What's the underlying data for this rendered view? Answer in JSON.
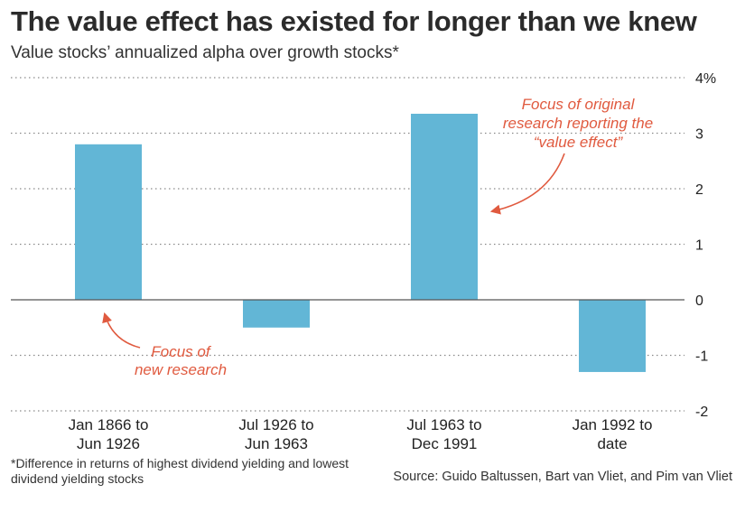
{
  "header": {
    "title": "The value effect has existed for longer than we knew",
    "subtitle": "Value stocks’ annualized alpha over growth stocks*"
  },
  "chart_data": {
    "type": "bar",
    "categories": [
      [
        "Jan 1866 to",
        "Jun 1926"
      ],
      [
        "Jul 1926 to",
        "Jun 1963"
      ],
      [
        "Jul 1963 to",
        "Dec 1991"
      ],
      [
        "Jan 1992 to",
        "date"
      ]
    ],
    "values": [
      2.8,
      -0.5,
      3.35,
      -1.3
    ],
    "ylim": [
      -2,
      4
    ],
    "yticks": [
      {
        "value": 4,
        "label": "4%"
      },
      {
        "value": 3,
        "label": "3"
      },
      {
        "value": 2,
        "label": "2"
      },
      {
        "value": 1,
        "label": "1"
      },
      {
        "value": 0,
        "label": "0"
      },
      {
        "value": -1,
        "label": "-1"
      },
      {
        "value": -2,
        "label": "-2"
      }
    ],
    "grid": true,
    "bar_color": "#62b6d6",
    "annotations": [
      {
        "lines": [
          "Focus of",
          "new research"
        ],
        "color": "#e05a3f",
        "target_category": 0
      },
      {
        "lines": [
          "Focus of original",
          "research reporting the",
          "“value effect”"
        ],
        "color": "#e05a3f",
        "target_category": 2
      }
    ]
  },
  "footer": {
    "footnote": "*Difference in returns of highest dividend yielding and lowest dividend yielding stocks",
    "source": "Source: Guido Baltussen, Bart van Vliet, and Pim van Vliet"
  }
}
